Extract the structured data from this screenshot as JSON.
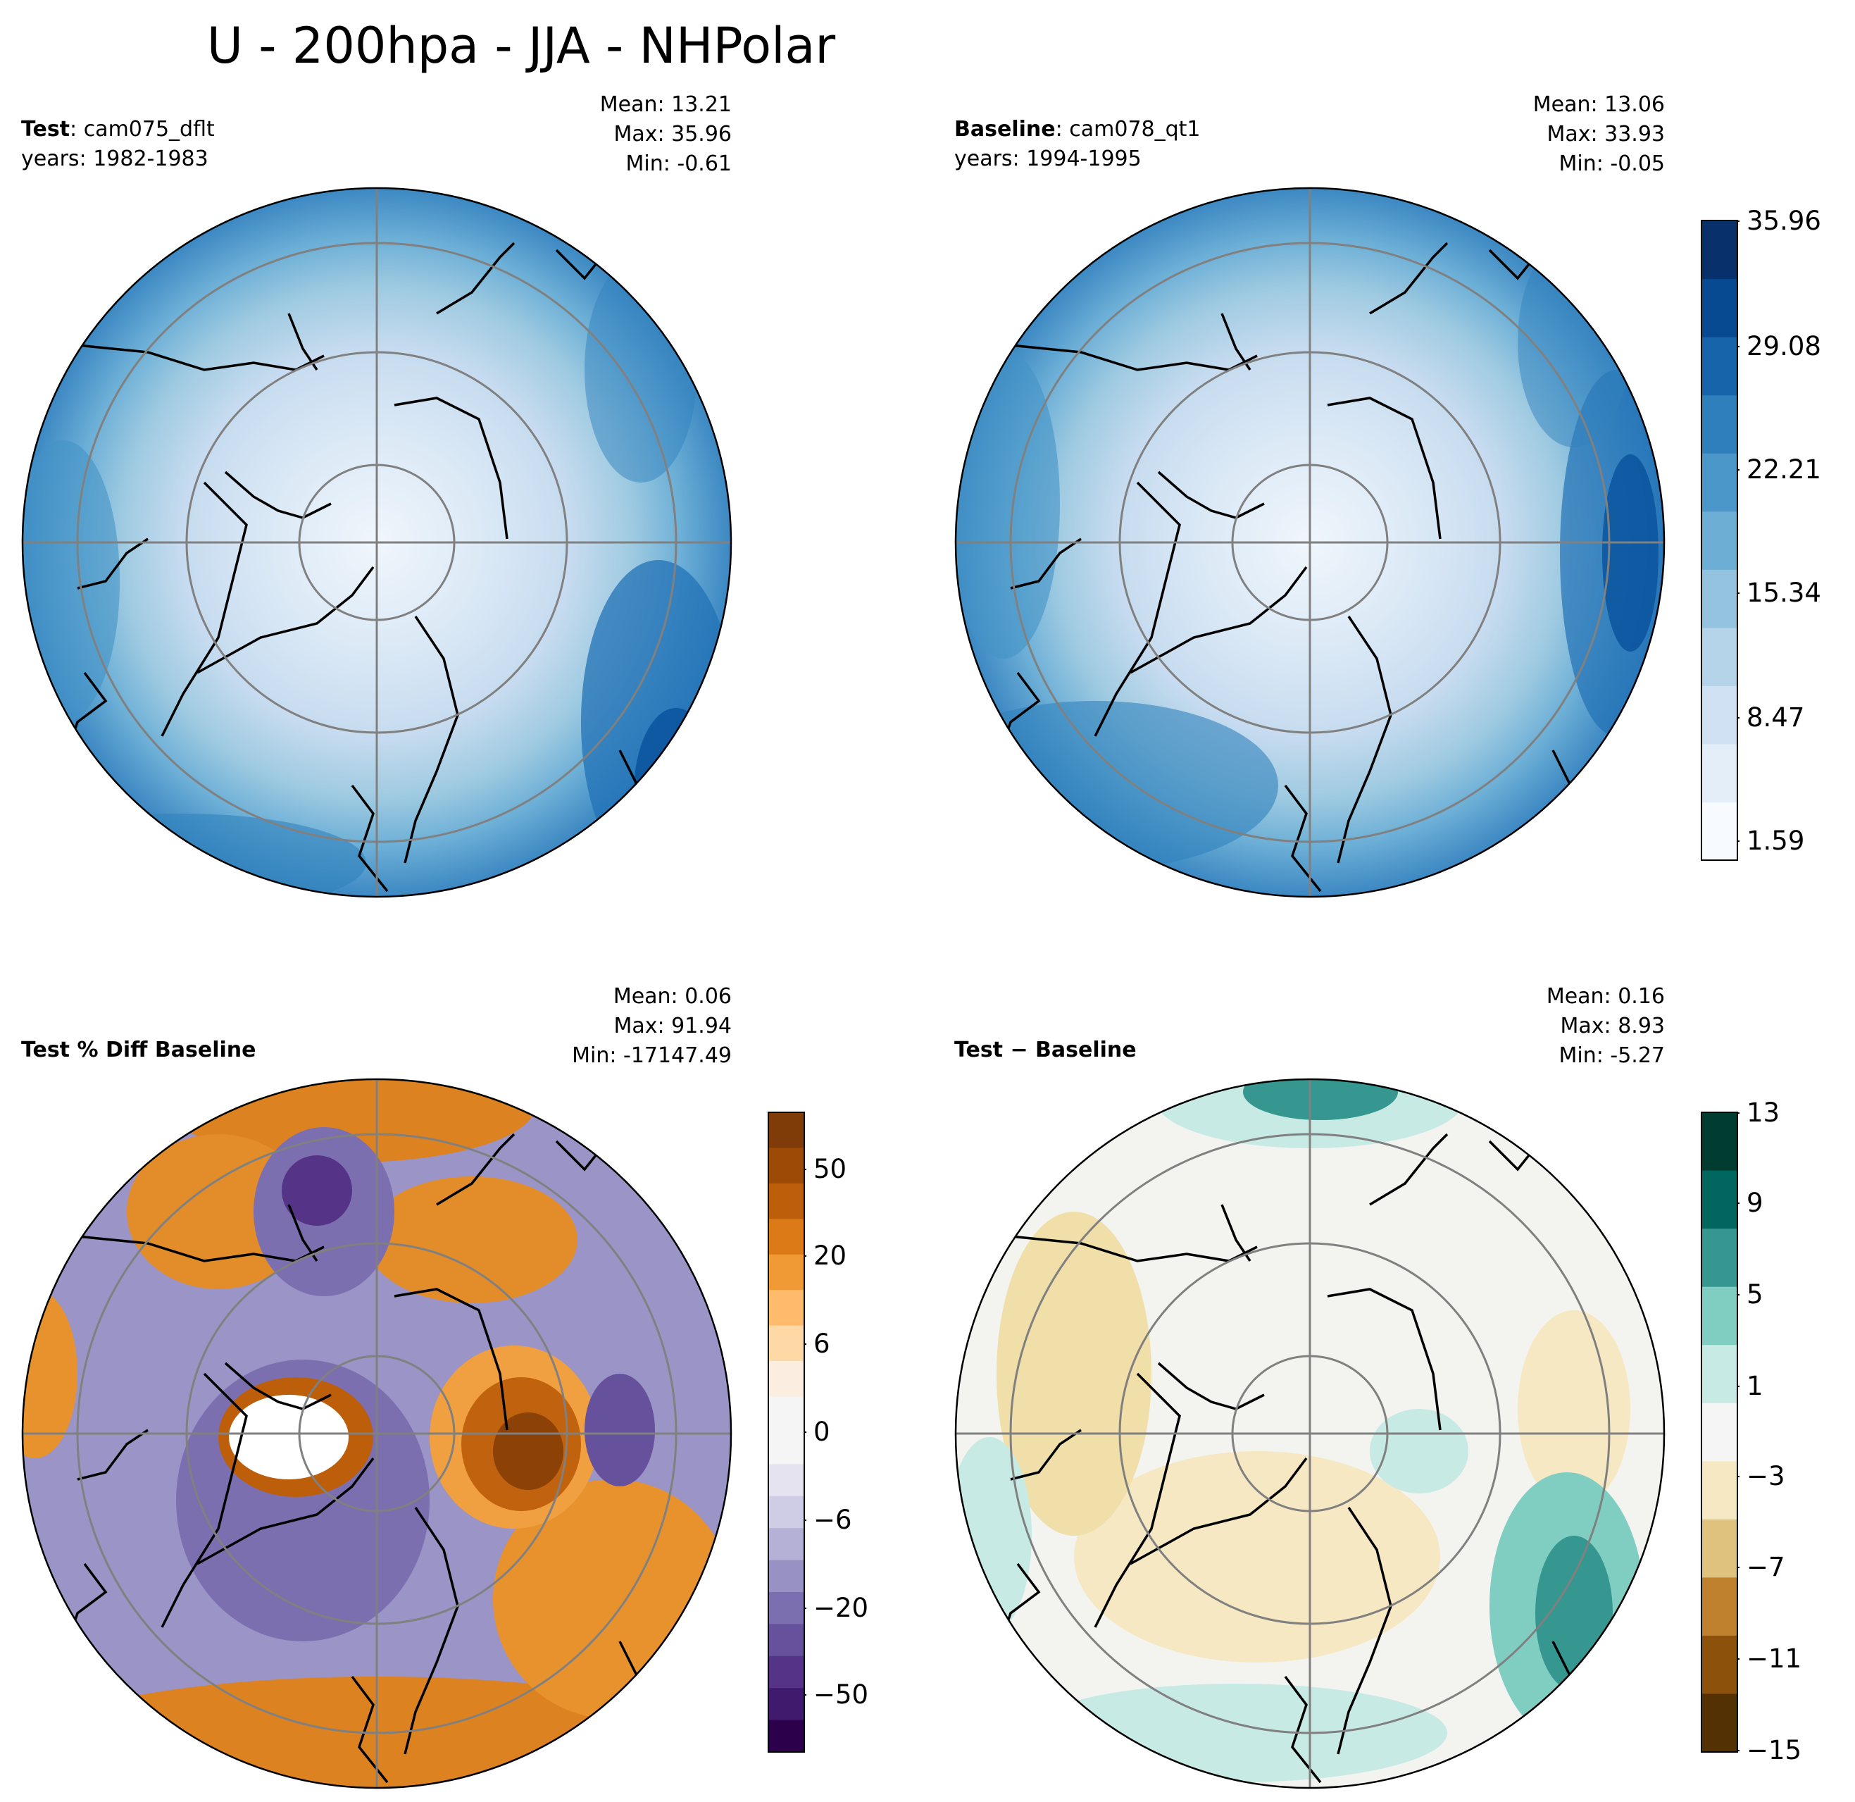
{
  "title": "U - 200hpa - JJA - NHPolar",
  "panels": {
    "test": {
      "label_bold": "Test",
      "label_sep": ": ",
      "label_rest": "cam075_dflt",
      "years": "years: 1982-1983",
      "mean": "Mean: 13.21",
      "max": "Max: 35.96",
      "min": "Min: -0.61"
    },
    "baseline": {
      "label_bold": "Baseline",
      "label_sep": ": ",
      "label_rest": "cam078_qt1",
      "years": "years: 1994-1995",
      "mean": "Mean: 13.06",
      "max": "Max: 33.93",
      "min": "Min: -0.05"
    },
    "pctdiff": {
      "label_bold": "Test % Diff Baseline",
      "mean": "Mean:  0.06",
      "max": "Max: 91.94",
      "min": "Min: -17147.49"
    },
    "diff": {
      "label_bold": "Test − Baseline",
      "mean": "Mean:  0.16",
      "max": "Max:  8.93",
      "min": "Min: -5.27"
    }
  },
  "colorbars": {
    "main": {
      "ticks": [
        "35.96",
        "29.08",
        "22.21",
        "15.34",
        "8.47",
        "1.59"
      ],
      "colormap": [
        "#f7fbff",
        "#e3eef9",
        "#cfe1f2",
        "#b5d4e9",
        "#93c3df",
        "#6daed5",
        "#4b97c9",
        "#2f7fbc",
        "#1764ab",
        "#084a92",
        "#08306b"
      ]
    },
    "pct": {
      "ticks": [
        "50",
        "20",
        "6",
        "0",
        "−6",
        "−20",
        "−50"
      ],
      "colormap_top": [
        "#7f3b08",
        "#9d4a06",
        "#bd5e0b",
        "#db7a16",
        "#ef9a35",
        "#fdbb6b",
        "#fed9a6",
        "#fbeee0",
        "#f5f5f5"
      ],
      "colormap_bottom": [
        "#f5f5f5",
        "#e4e3ef",
        "#cfcde5",
        "#b5b1d6",
        "#9891c3",
        "#7c6fb0",
        "#66519c",
        "#553487",
        "#401a6d",
        "#2d004b"
      ]
    },
    "diff": {
      "ticks": [
        "13",
        "9",
        "5",
        "1",
        "−3",
        "−7",
        "−11",
        "−15"
      ],
      "colormap": [
        "#003c30",
        "#01665e",
        "#35978f",
        "#80cdc1",
        "#c7eae5",
        "#f5f5f5",
        "#f6e8c3",
        "#dfc27d",
        "#bf812d",
        "#8c510a",
        "#543005"
      ]
    }
  }
}
